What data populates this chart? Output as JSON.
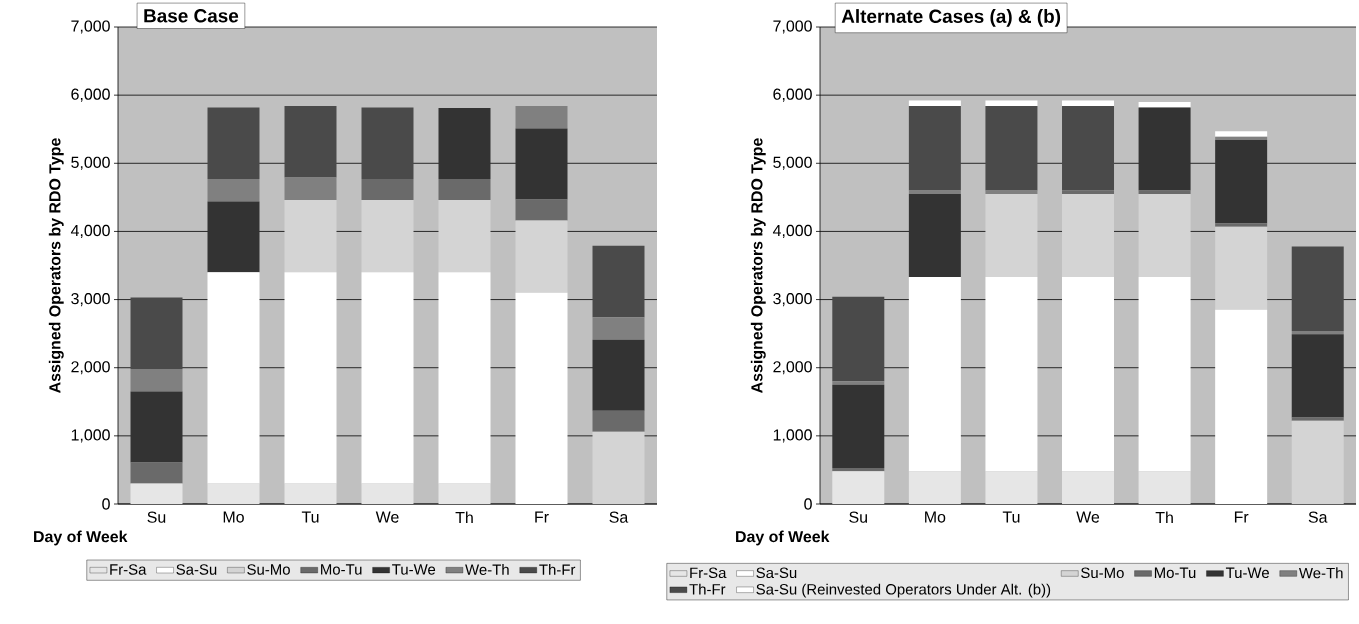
{
  "chart_data": [
    {
      "type": "bar",
      "title": "Base Case",
      "xlabel": "Day of Week",
      "ylabel": "Assigned Operators by RDO Type",
      "categories": [
        "Su",
        "Mo",
        "Tu",
        "We",
        "Th",
        "Fr",
        "Sa"
      ],
      "stacked": true,
      "ylim": [
        0,
        7000
      ],
      "yticks": [
        0,
        {
          "value": 1000,
          "label": "1,000"
        },
        {
          "value": 2000,
          "label": "2,000"
        },
        {
          "value": 3000,
          "label": "3,000"
        },
        {
          "value": 4000,
          "label": "4,000"
        },
        {
          "value": 5000,
          "label": "5,000"
        },
        {
          "value": 6000,
          "label": "6,000"
        },
        {
          "value": 7000,
          "label": "7,000"
        }
      ],
      "grid": "y",
      "legend": "bottom",
      "series": [
        {
          "name": "Fr-Sa",
          "color": "#e6e6e6",
          "values": [
            300,
            300,
            300,
            300,
            300,
            0,
            0
          ]
        },
        {
          "name": "Sa-Su",
          "color": "#ffffff",
          "values": [
            0,
            3100,
            3100,
            3100,
            3100,
            3100,
            0
          ]
        },
        {
          "name": "Su-Mo",
          "color": "#d4d4d4",
          "values": [
            0,
            0,
            1060,
            1060,
            1060,
            1060,
            1060
          ]
        },
        {
          "name": "Mo-Tu",
          "color": "#6a6a6a",
          "values": [
            310,
            0,
            0,
            310,
            310,
            310,
            310
          ]
        },
        {
          "name": "Tu-We",
          "color": "#333333",
          "values": [
            1040,
            1040,
            0,
            0,
            1040,
            1040,
            1040
          ]
        },
        {
          "name": "We-Th",
          "color": "#808080",
          "values": [
            330,
            330,
            330,
            0,
            0,
            330,
            330
          ]
        },
        {
          "name": "Th-Fr",
          "color": "#4a4a4a",
          "values": [
            1050,
            1050,
            1050,
            1050,
            0,
            0,
            1050
          ]
        }
      ]
    },
    {
      "type": "bar",
      "title": "Alternate Cases (a) & (b)",
      "xlabel": "Day of Week",
      "ylabel": "Assigned Operators by RDO Type",
      "categories": [
        "Su",
        "Mo",
        "Tu",
        "We",
        "Th",
        "Fr",
        "Sa"
      ],
      "stacked": true,
      "ylim": [
        0,
        7000
      ],
      "yticks": [
        0,
        {
          "value": 1000,
          "label": "1,000"
        },
        {
          "value": 2000,
          "label": "2,000"
        },
        {
          "value": 3000,
          "label": "3,000"
        },
        {
          "value": 4000,
          "label": "4,000"
        },
        {
          "value": 5000,
          "label": "5,000"
        },
        {
          "value": 6000,
          "label": "6,000"
        },
        {
          "value": 7000,
          "label": "7,000"
        }
      ],
      "grid": "y",
      "legend": "bottom",
      "series": [
        {
          "name": "Fr-Sa",
          "color": "#e6e6e6",
          "values": [
            480,
            480,
            480,
            480,
            480,
            0,
            0
          ]
        },
        {
          "name": "Sa-Su",
          "color": "#ffffff",
          "values": [
            0,
            2850,
            2850,
            2850,
            2850,
            2850,
            0
          ]
        },
        {
          "name": "Su-Mo",
          "color": "#d4d4d4",
          "values": [
            0,
            0,
            1220,
            1220,
            1220,
            1220,
            1220
          ]
        },
        {
          "name": "Mo-Tu",
          "color": "#6a6a6a",
          "values": [
            50,
            0,
            0,
            50,
            50,
            50,
            50
          ]
        },
        {
          "name": "Tu-We",
          "color": "#333333",
          "values": [
            1220,
            1220,
            0,
            0,
            1220,
            1220,
            1220
          ]
        },
        {
          "name": "We-Th",
          "color": "#808080",
          "values": [
            50,
            50,
            50,
            0,
            0,
            50,
            50
          ]
        },
        {
          "name": "Th-Fr",
          "color": "#4a4a4a",
          "values": [
            1240,
            1240,
            1240,
            1240,
            0,
            0,
            1240
          ]
        },
        {
          "name": "Sa-Su (Reinvested Operators Under Alt. (b))",
          "color": "#ffffff",
          "values": [
            0,
            80,
            80,
            80,
            80,
            80,
            0
          ]
        }
      ]
    }
  ]
}
